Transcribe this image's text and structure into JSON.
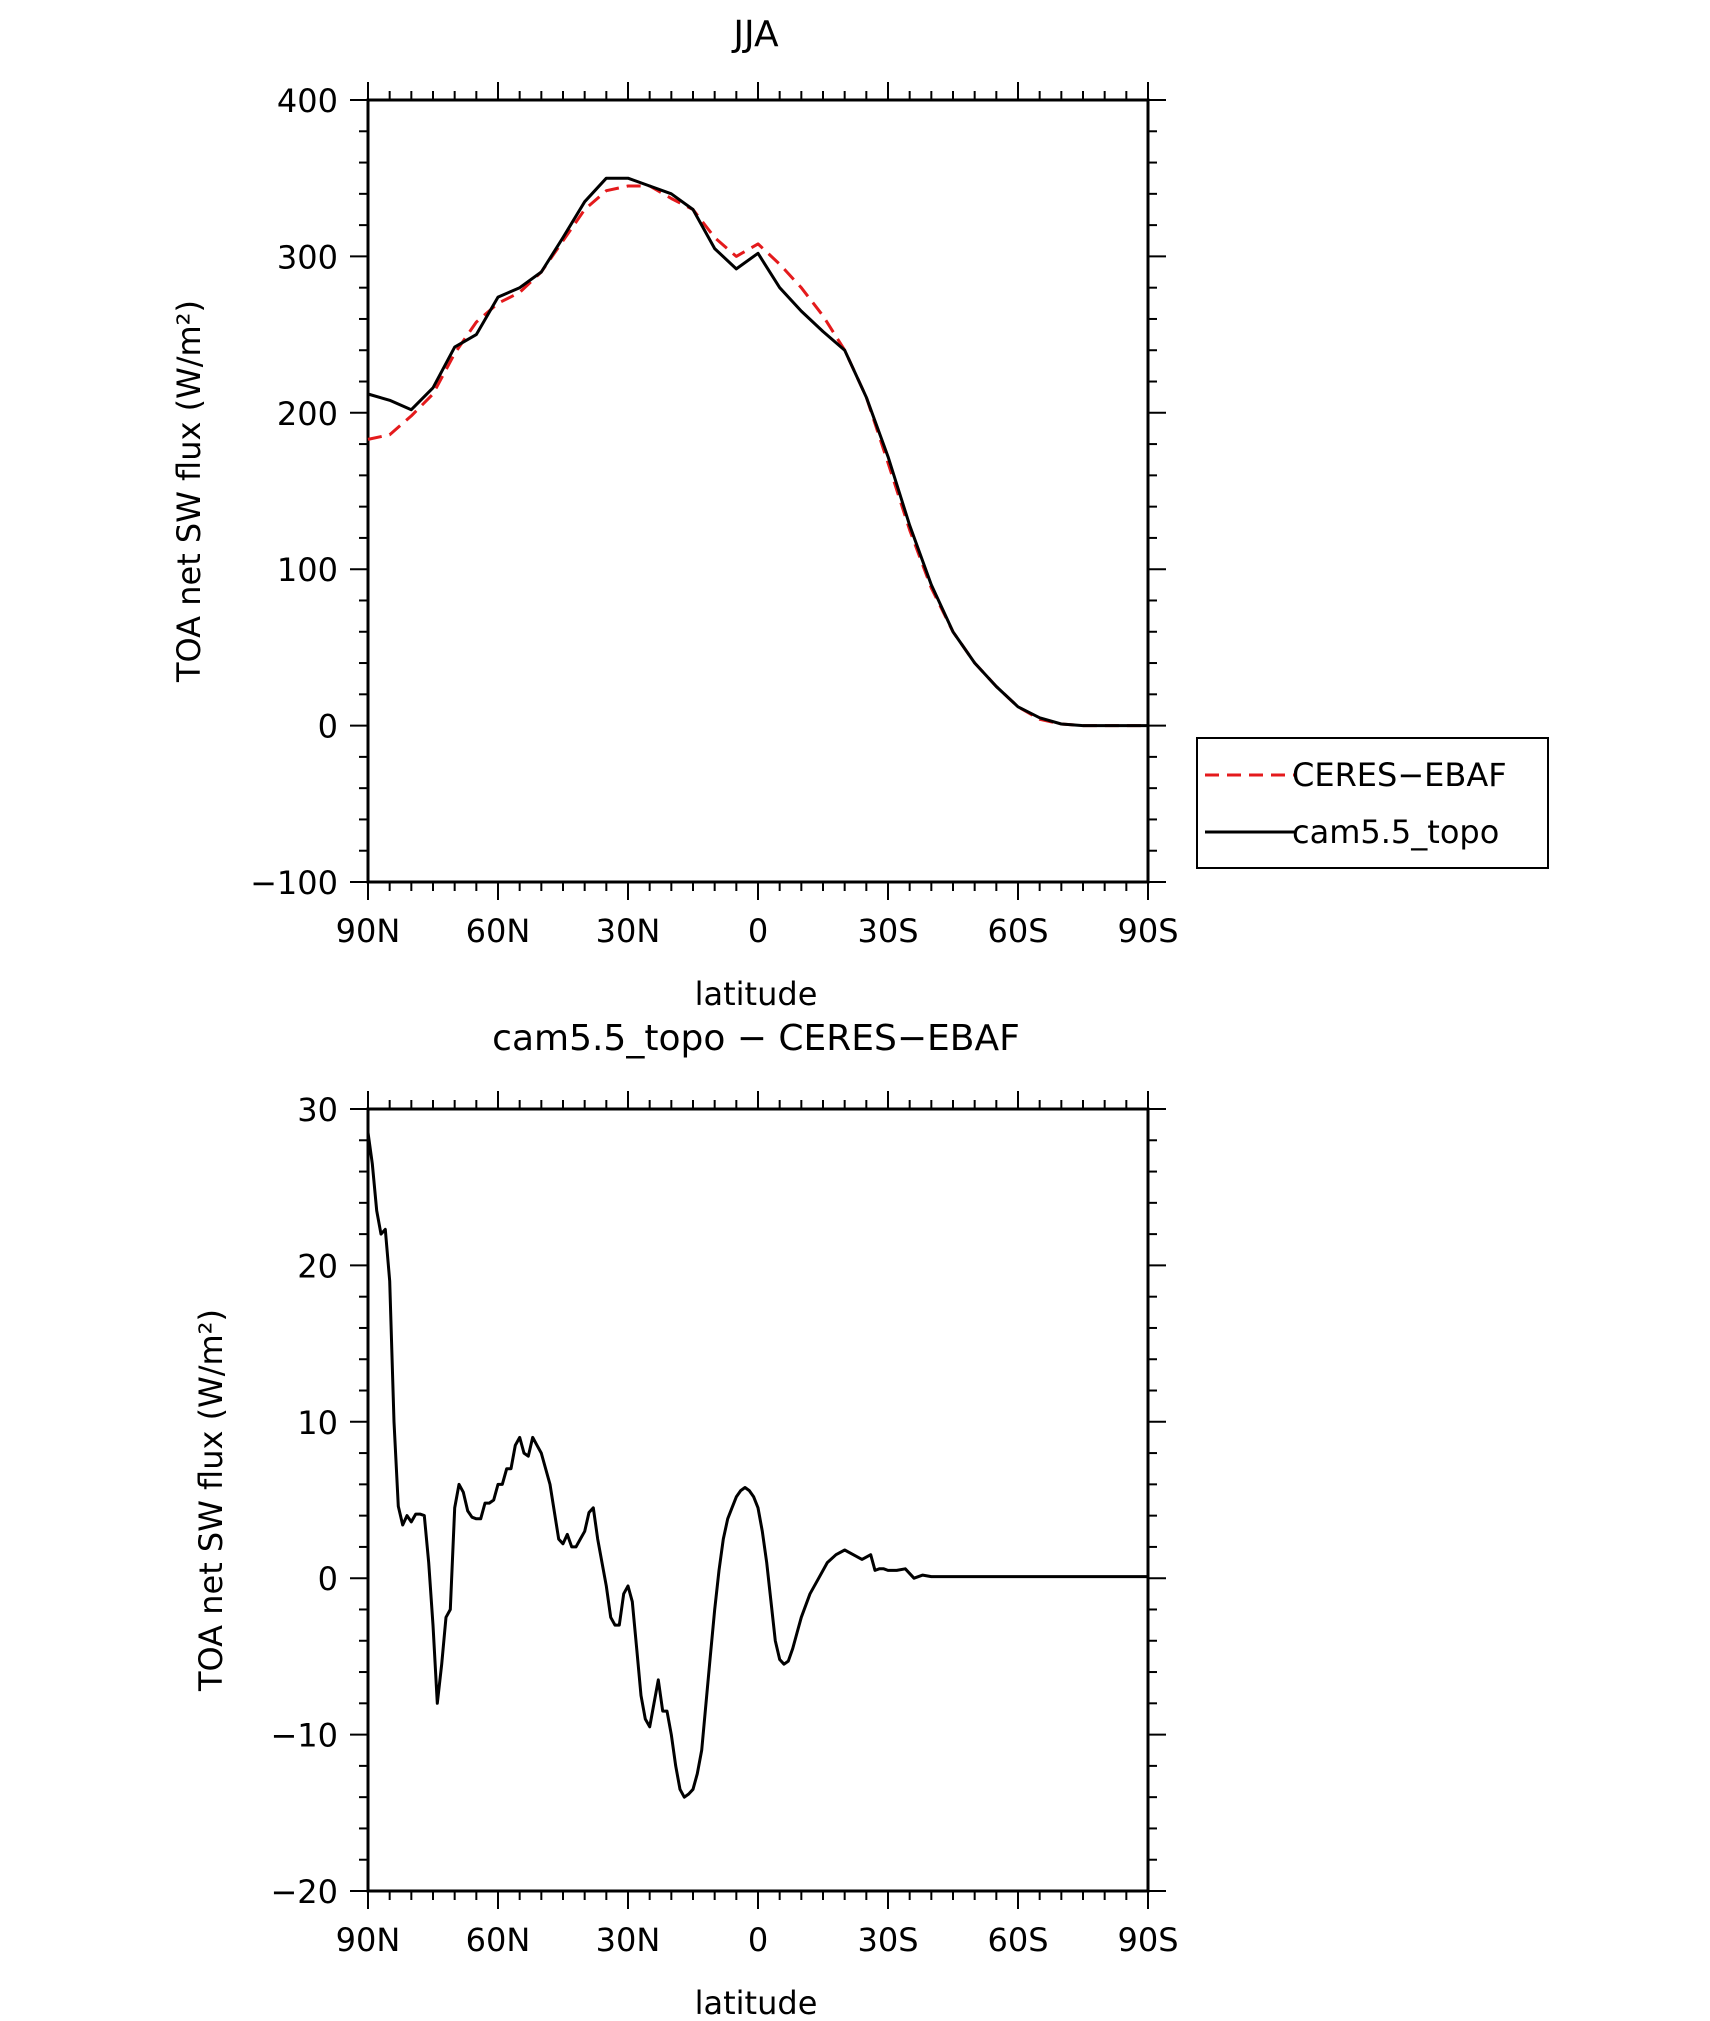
{
  "chart_data": [
    {
      "type": "line",
      "title": "JJA",
      "xlabel": "latitude",
      "ylabel": "TOA net SW flux (W/m²)",
      "xlim": [
        90,
        -90
      ],
      "ylim": [
        -100,
        400
      ],
      "xticks": [
        90,
        60,
        30,
        0,
        -30,
        -60,
        -90
      ],
      "xtick_labels": [
        "90N",
        "60N",
        "30N",
        "0",
        "30S",
        "60S",
        "90S"
      ],
      "yticks": [
        -100,
        0,
        100,
        200,
        300,
        400
      ],
      "ytick_labels": [
        "−100",
        "0",
        "100",
        "200",
        "300",
        "400"
      ],
      "legend": [
        "CERES−EBAF",
        "cam5.5_topo"
      ],
      "series": [
        {
          "name": "CERES−EBAF",
          "color": "#e41a1c",
          "dash": "dashed",
          "x": [
            90,
            85,
            80,
            75,
            70,
            65,
            60,
            55,
            50,
            45,
            40,
            35,
            30,
            25,
            20,
            15,
            10,
            5,
            0,
            -5,
            -10,
            -15,
            -20,
            -25,
            -30,
            -35,
            -40,
            -45,
            -50,
            -55,
            -60,
            -65,
            -70,
            -75,
            -80,
            -85,
            -90
          ],
          "values": [
            183,
            186,
            198,
            212,
            238,
            258,
            270,
            277,
            290,
            310,
            330,
            342,
            345,
            345,
            337,
            330,
            312,
            300,
            308,
            295,
            280,
            262,
            240,
            210,
            168,
            125,
            88,
            60,
            40,
            25,
            12,
            4,
            1,
            0,
            0,
            0,
            0
          ]
        },
        {
          "name": "cam5.5_topo",
          "color": "#000000",
          "dash": "solid",
          "x": [
            90,
            85,
            80,
            75,
            70,
            65,
            60,
            55,
            50,
            45,
            40,
            35,
            30,
            25,
            20,
            15,
            10,
            5,
            0,
            -5,
            -10,
            -15,
            -20,
            -25,
            -30,
            -35,
            -40,
            -45,
            -50,
            -55,
            -60,
            -65,
            -70,
            -75,
            -80,
            -85,
            -90
          ],
          "values": [
            212,
            208,
            202,
            216,
            242,
            250,
            274,
            280,
            290,
            312,
            335,
            350,
            350,
            345,
            340,
            330,
            305,
            292,
            302,
            280,
            265,
            252,
            240,
            210,
            172,
            128,
            90,
            60,
            40,
            25,
            12,
            5,
            1,
            0,
            0,
            0,
            0
          ]
        }
      ]
    },
    {
      "type": "line",
      "title": "cam5.5_topo − CERES−EBAF",
      "xlabel": "latitude",
      "ylabel": "TOA net SW flux (W/m²)",
      "xlim": [
        90,
        -90
      ],
      "ylim": [
        -20,
        30
      ],
      "xticks": [
        90,
        60,
        30,
        0,
        -30,
        -60,
        -90
      ],
      "xtick_labels": [
        "90N",
        "60N",
        "30N",
        "0",
        "30S",
        "60S",
        "90S"
      ],
      "yticks": [
        -20,
        -10,
        0,
        10,
        20,
        30
      ],
      "ytick_labels": [
        "−20",
        "−10",
        "0",
        "10",
        "20",
        "30"
      ],
      "series": [
        {
          "name": "cam5.5_topo − CERES−EBAF",
          "color": "#000000",
          "dash": "solid",
          "x": [
            90,
            89,
            88,
            87,
            86,
            85,
            84,
            83,
            82,
            81,
            80,
            79,
            78,
            77,
            76,
            75,
            74,
            73,
            72,
            71,
            70,
            69,
            68,
            67,
            66,
            65,
            64,
            63,
            62,
            61,
            60,
            59,
            58,
            57,
            56,
            55,
            54,
            53,
            52,
            51,
            50,
            48,
            46,
            45,
            44,
            43,
            42,
            41,
            40,
            39,
            38,
            37,
            36,
            35,
            34,
            33,
            32,
            31,
            30,
            29,
            28,
            27,
            26,
            25,
            24,
            23,
            22,
            21,
            20,
            19,
            18,
            17,
            16,
            15,
            14,
            13,
            12,
            11,
            10,
            9,
            8,
            7,
            6,
            5,
            4,
            3,
            2,
            1,
            0,
            -1,
            -2,
            -3,
            -4,
            -5,
            -6,
            -7,
            -8,
            -9,
            -10,
            -12,
            -14,
            -16,
            -18,
            -20,
            -22,
            -24,
            -26,
            -27,
            -28,
            -29,
            -30,
            -32,
            -34,
            -36,
            -38,
            -40,
            -42,
            -44,
            -45,
            -46,
            -48,
            -50,
            -52,
            -54,
            -55,
            -56,
            -58,
            -60,
            -61,
            -62,
            -63,
            -64,
            -65,
            -66,
            -67,
            -68,
            -70,
            -72,
            -74,
            -76,
            -77,
            -78,
            -80,
            -82,
            -84,
            -86,
            -88,
            -90
          ],
          "values": [
            28.5,
            26.5,
            23.5,
            22,
            22.3,
            19,
            10,
            4.6,
            3.4,
            4.0,
            3.6,
            4.1,
            4.1,
            4.0,
            1.0,
            -3.0,
            -8.0,
            -5.5,
            -2.5,
            -2.0,
            4.5,
            6.0,
            5.5,
            4.3,
            3.9,
            3.8,
            3.8,
            4.8,
            4.8,
            5.0,
            6.0,
            6.0,
            7.0,
            7.0,
            8.5,
            9.0,
            8.0,
            7.8,
            9.0,
            8.5,
            8.0,
            6.0,
            2.5,
            2.2,
            2.8,
            2.0,
            2.0,
            2.5,
            3.0,
            4.2,
            4.5,
            2.5,
            1.0,
            -0.5,
            -2.5,
            -3.0,
            -3.0,
            -1.0,
            -0.5,
            -1.5,
            -4.5,
            -7.5,
            -9.0,
            -9.5,
            -8.0,
            -6.5,
            -8.5,
            -8.5,
            -10.0,
            -12.0,
            -13.5,
            -14.0,
            -13.8,
            -13.5,
            -12.5,
            -11.0,
            -8.0,
            -5.0,
            -2.0,
            0.5,
            2.5,
            3.8,
            4.5,
            5.2,
            5.6,
            5.8,
            5.6,
            5.2,
            4.5,
            3.0,
            1.0,
            -1.5,
            -4.0,
            -5.2,
            -5.5,
            -5.3,
            -4.5,
            -3.5,
            -2.5,
            -1.0,
            0.0,
            1.0,
            1.5,
            1.8,
            1.5,
            1.2,
            1.5,
            0.5,
            0.6,
            0.6,
            0.5,
            0.5,
            0.6,
            0.0,
            0.2,
            0.1,
            0.1,
            0.1,
            0.1,
            0.1,
            0.1,
            0.1,
            0.1,
            0.1,
            0.1,
            0.1,
            0.1,
            0.1,
            0.1,
            0.1,
            0.1,
            0.1,
            0.1,
            0.1,
            0.1,
            0.1,
            0.1,
            0.1,
            0.1,
            0.1,
            0.1,
            0.1,
            0.1,
            0.1,
            0.1,
            0.1,
            0.1,
            0.1
          ]
        }
      ]
    }
  ]
}
